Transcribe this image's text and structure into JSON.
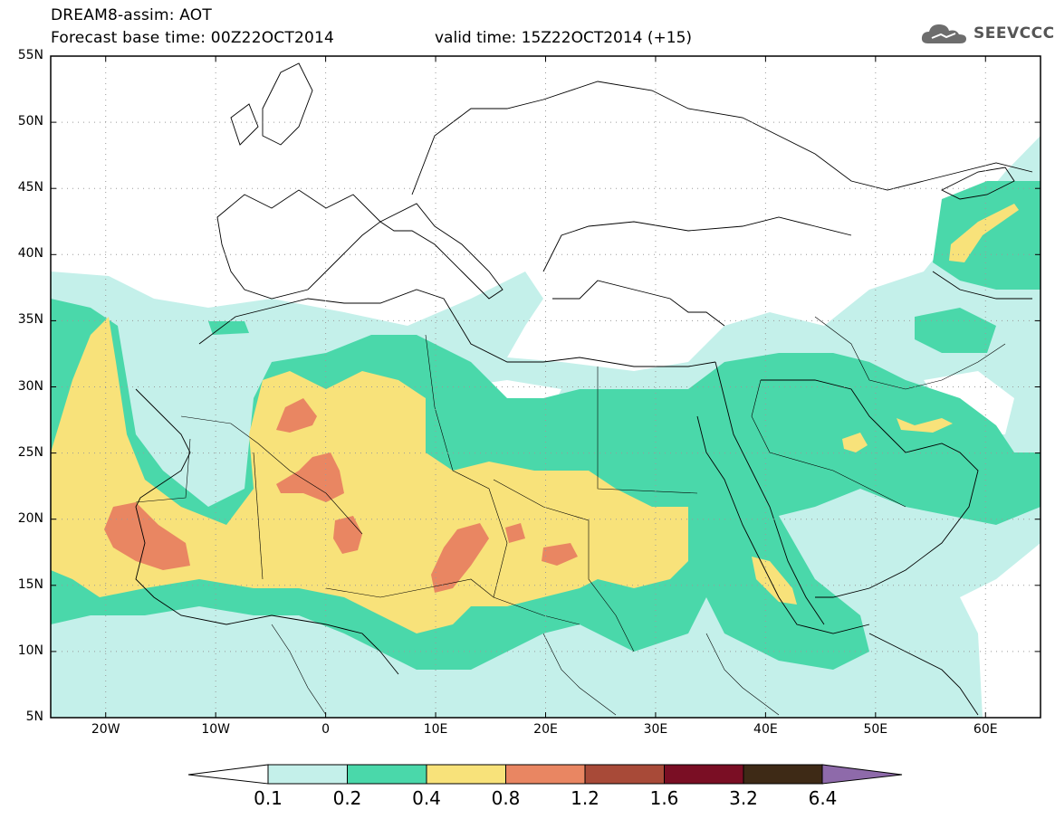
{
  "header": {
    "title": "DREAM8-assim: AOT",
    "base_time": "Forecast base time: 00Z22OCT2014",
    "valid_time": "valid time: 15Z22OCT2014 (+15)",
    "logo_text": "SEEVCCC"
  },
  "map": {
    "lon_range": [
      -25,
      65
    ],
    "lat_range": [
      5,
      55
    ],
    "lat_labels": [
      "55N",
      "50N",
      "45N",
      "40N",
      "35N",
      "30N",
      "25N",
      "20N",
      "15N",
      "10N",
      "5N"
    ],
    "lat_values": [
      55,
      50,
      45,
      40,
      35,
      30,
      25,
      20,
      15,
      10,
      5
    ],
    "lon_labels": [
      "20W",
      "10W",
      "0",
      "10E",
      "20E",
      "30E",
      "40E",
      "50E",
      "60E"
    ],
    "lon_values": [
      -20,
      -10,
      0,
      10,
      20,
      30,
      40,
      50,
      60
    ],
    "gridlines": "dotted"
  },
  "colorbar": {
    "labels": [
      "0.1",
      "0.2",
      "0.4",
      "0.8",
      "1.2",
      "1.6",
      "3.2",
      "6.4"
    ],
    "colors": [
      "#c4f0ea",
      "#4ad8aa",
      "#f8e27a",
      "#e98662",
      "#a84a38",
      "#7a0e24",
      "#3e2a16",
      "#8e6aaa"
    ]
  }
}
